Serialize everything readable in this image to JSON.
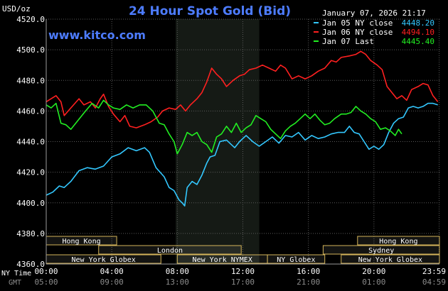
{
  "chart_data": {
    "type": "line",
    "title": "24 Hour Spot Gold (Bid)",
    "source": "www.kitco.com",
    "date": "January 07, 2026 21:17",
    "ylabel": "USD/oz",
    "ylim": [
      4360,
      4520
    ],
    "yticks": [
      "4360.0",
      "4380.0",
      "4400.0",
      "4420.0",
      "4440.0",
      "4460.0",
      "4480.0",
      "4500.0",
      "4520.0"
    ],
    "xlim": [
      0,
      24
    ],
    "x_ticks": [
      {
        "x": 0,
        "ny": "00:00",
        "gmt": "05:00"
      },
      {
        "x": 4,
        "ny": "04:00",
        "gmt": "09:00"
      },
      {
        "x": 8,
        "ny": "08:00",
        "gmt": "13:00"
      },
      {
        "x": 12,
        "ny": "12:00",
        "gmt": "17:00"
      },
      {
        "x": 16,
        "ny": "16:00",
        "gmt": "21:00"
      },
      {
        "x": 20,
        "ny": "20:00",
        "gmt": "01:00"
      },
      {
        "x": 23.98,
        "ny": "23:59",
        "gmt": "04:59"
      }
    ],
    "x_axis_labels": {
      "ny": "NY Time",
      "gmt": "GMT"
    },
    "grid": true,
    "legend_position": "top-right",
    "colors": {
      "background": "#000000",
      "plot_bg": "#000000",
      "shade": "#151a15",
      "grid": "#5a5a5a",
      "title": "#4d7cff",
      "session_fill": "#fffbe0",
      "session_border": "#d4b45a"
    },
    "shaded_hours": [
      7.9,
      13.0
    ],
    "sessions": [
      {
        "name": "Hong Kong",
        "row": 0,
        "start": 0.0,
        "end": 4.3
      },
      {
        "name": "Hong Kong",
        "row": 0,
        "start": 19.0,
        "end": 24.0
      },
      {
        "name": "London",
        "row": 1,
        "start": 3.2,
        "end": 11.9
      },
      {
        "name": "Sydney",
        "row": 1,
        "start": 16.9,
        "end": 24.0
      },
      {
        "name": "New York Globex",
        "row": 2,
        "start": 0.0,
        "end": 7.0
      },
      {
        "name": "New York NYMEX",
        "row": 2,
        "start": 8.0,
        "end": 13.5
      },
      {
        "name": "NY Globex",
        "row": 2,
        "start": 13.5,
        "end": 17.0
      },
      {
        "name": "New York Globex",
        "row": 2,
        "start": 18.0,
        "end": 24.0
      }
    ],
    "series": [
      {
        "name": "Jan 05 NY close",
        "close": "4448.20",
        "color": "#33c8ff",
        "points": [
          [
            0,
            4405
          ],
          [
            0.4,
            4407
          ],
          [
            0.8,
            4411
          ],
          [
            1.1,
            4410
          ],
          [
            1.5,
            4414
          ],
          [
            2.0,
            4421
          ],
          [
            2.5,
            4423
          ],
          [
            3.0,
            4422
          ],
          [
            3.5,
            4424
          ],
          [
            4.0,
            4430
          ],
          [
            4.5,
            4432
          ],
          [
            5.0,
            4436
          ],
          [
            5.5,
            4434
          ],
          [
            6.0,
            4436
          ],
          [
            6.3,
            4433
          ],
          [
            6.7,
            4423
          ],
          [
            7.2,
            4417
          ],
          [
            7.5,
            4410
          ],
          [
            7.8,
            4408
          ],
          [
            8.1,
            4402
          ],
          [
            8.3,
            4400
          ],
          [
            8.45,
            4398
          ],
          [
            8.6,
            4410
          ],
          [
            8.9,
            4414
          ],
          [
            9.2,
            4412
          ],
          [
            9.5,
            4418
          ],
          [
            9.8,
            4426
          ],
          [
            10.0,
            4430
          ],
          [
            10.3,
            4431
          ],
          [
            10.6,
            4440
          ],
          [
            11.0,
            4441
          ],
          [
            11.3,
            4438
          ],
          [
            11.5,
            4436
          ],
          [
            11.8,
            4440
          ],
          [
            12.2,
            4444
          ],
          [
            12.6,
            4440
          ],
          [
            13.0,
            4437
          ],
          [
            13.4,
            4440
          ],
          [
            13.8,
            4443
          ],
          [
            14.2,
            4439
          ],
          [
            14.6,
            4444
          ],
          [
            15.0,
            4443
          ],
          [
            15.4,
            4446
          ],
          [
            15.8,
            4441
          ],
          [
            16.2,
            4444
          ],
          [
            16.6,
            4442
          ],
          [
            17.0,
            4443
          ],
          [
            17.4,
            4445
          ],
          [
            17.8,
            4446
          ],
          [
            18.2,
            4446
          ],
          [
            18.5,
            4450
          ],
          [
            18.8,
            4446
          ],
          [
            19.1,
            4445
          ],
          [
            19.4,
            4440
          ],
          [
            19.7,
            4435
          ],
          [
            20.0,
            4437
          ],
          [
            20.3,
            4435
          ],
          [
            20.6,
            4438
          ],
          [
            20.9,
            4446
          ],
          [
            21.2,
            4452
          ],
          [
            21.5,
            4455
          ],
          [
            21.8,
            4456
          ],
          [
            22.1,
            4462
          ],
          [
            22.4,
            4463
          ],
          [
            22.7,
            4462
          ],
          [
            23.0,
            4463
          ],
          [
            23.3,
            4465
          ],
          [
            23.6,
            4465
          ],
          [
            23.9,
            4464
          ]
        ]
      },
      {
        "name": "Jan 06 NY close",
        "close": "4494.10",
        "color": "#ff2020",
        "points": [
          [
            0,
            4466
          ],
          [
            0.3,
            4468
          ],
          [
            0.6,
            4470
          ],
          [
            0.9,
            4466
          ],
          [
            1.1,
            4457
          ],
          [
            1.5,
            4462
          ],
          [
            2.0,
            4468
          ],
          [
            2.3,
            4464
          ],
          [
            2.7,
            4466
          ],
          [
            3.0,
            4462
          ],
          [
            3.3,
            4468
          ],
          [
            3.5,
            4471
          ],
          [
            3.8,
            4463
          ],
          [
            4.1,
            4458
          ],
          [
            4.5,
            4453
          ],
          [
            4.8,
            4457
          ],
          [
            5.1,
            4450
          ],
          [
            5.5,
            4449
          ],
          [
            6.0,
            4451
          ],
          [
            6.4,
            4453
          ],
          [
            6.8,
            4456
          ],
          [
            7.1,
            4460
          ],
          [
            7.5,
            4462
          ],
          [
            7.9,
            4461
          ],
          [
            8.2,
            4464
          ],
          [
            8.5,
            4460
          ],
          [
            8.8,
            4464
          ],
          [
            9.2,
            4468
          ],
          [
            9.5,
            4472
          ],
          [
            9.8,
            4479
          ],
          [
            10.1,
            4488
          ],
          [
            10.4,
            4484
          ],
          [
            10.7,
            4481
          ],
          [
            11.0,
            4476
          ],
          [
            11.4,
            4480
          ],
          [
            11.8,
            4483
          ],
          [
            12.1,
            4484
          ],
          [
            12.4,
            4487
          ],
          [
            12.8,
            4488
          ],
          [
            13.2,
            4490
          ],
          [
            13.6,
            4488
          ],
          [
            14.0,
            4486
          ],
          [
            14.3,
            4490
          ],
          [
            14.6,
            4488
          ],
          [
            15.0,
            4481
          ],
          [
            15.4,
            4483
          ],
          [
            15.8,
            4481
          ],
          [
            16.2,
            4483
          ],
          [
            16.6,
            4486
          ],
          [
            17.0,
            4488
          ],
          [
            17.4,
            4493
          ],
          [
            17.7,
            4492
          ],
          [
            18.0,
            4495
          ],
          [
            18.5,
            4496
          ],
          [
            18.9,
            4497
          ],
          [
            19.2,
            4499
          ],
          [
            19.5,
            4497
          ],
          [
            19.8,
            4493
          ],
          [
            20.2,
            4490
          ],
          [
            20.5,
            4487
          ],
          [
            20.8,
            4476
          ],
          [
            21.1,
            4472
          ],
          [
            21.4,
            4468
          ],
          [
            21.7,
            4470
          ],
          [
            22.0,
            4467
          ],
          [
            22.3,
            4474
          ],
          [
            22.7,
            4476
          ],
          [
            23.0,
            4478
          ],
          [
            23.3,
            4477
          ],
          [
            23.6,
            4470
          ],
          [
            23.9,
            4466
          ]
        ]
      },
      {
        "name": "Jan 07 Last",
        "close": "4445.40",
        "color": "#22ee22",
        "points": [
          [
            0,
            4464
          ],
          [
            0.3,
            4462
          ],
          [
            0.6,
            4465
          ],
          [
            0.9,
            4452
          ],
          [
            1.2,
            4451
          ],
          [
            1.5,
            4448
          ],
          [
            1.8,
            4452
          ],
          [
            2.1,
            4456
          ],
          [
            2.4,
            4460
          ],
          [
            2.8,
            4465
          ],
          [
            3.2,
            4462
          ],
          [
            3.5,
            4467
          ],
          [
            3.8,
            4464
          ],
          [
            4.1,
            4462
          ],
          [
            4.5,
            4461
          ],
          [
            4.9,
            4464
          ],
          [
            5.3,
            4462
          ],
          [
            5.7,
            4464
          ],
          [
            6.1,
            4464
          ],
          [
            6.5,
            4460
          ],
          [
            6.9,
            4452
          ],
          [
            7.2,
            4451
          ],
          [
            7.5,
            4445
          ],
          [
            7.8,
            4440
          ],
          [
            8.0,
            4432
          ],
          [
            8.3,
            4438
          ],
          [
            8.6,
            4446
          ],
          [
            8.9,
            4444
          ],
          [
            9.2,
            4446
          ],
          [
            9.5,
            4440
          ],
          [
            9.8,
            4438
          ],
          [
            10.1,
            4433
          ],
          [
            10.4,
            4443
          ],
          [
            10.7,
            4445
          ],
          [
            11.0,
            4450
          ],
          [
            11.3,
            4446
          ],
          [
            11.6,
            4452
          ],
          [
            11.9,
            4446
          ],
          [
            12.2,
            4449
          ],
          [
            12.5,
            4451
          ],
          [
            12.8,
            4457
          ],
          [
            13.1,
            4455
          ],
          [
            13.4,
            4453
          ],
          [
            13.7,
            4448
          ],
          [
            14.0,
            4445
          ],
          [
            14.3,
            4442
          ],
          [
            14.6,
            4447
          ],
          [
            14.9,
            4450
          ],
          [
            15.2,
            4452
          ],
          [
            15.5,
            4455
          ],
          [
            15.8,
            4458
          ],
          [
            16.1,
            4455
          ],
          [
            16.4,
            4458
          ],
          [
            16.7,
            4454
          ],
          [
            17.0,
            4451
          ],
          [
            17.3,
            4452
          ],
          [
            17.6,
            4455
          ],
          [
            18.0,
            4458
          ],
          [
            18.3,
            4458
          ],
          [
            18.6,
            4459
          ],
          [
            18.9,
            4463
          ],
          [
            19.2,
            4460
          ],
          [
            19.5,
            4458
          ],
          [
            19.8,
            4455
          ],
          [
            20.1,
            4453
          ],
          [
            20.4,
            4448
          ],
          [
            20.7,
            4449
          ],
          [
            21.0,
            4447
          ],
          [
            21.3,
            4444
          ],
          [
            21.5,
            4448
          ],
          [
            21.7,
            4445
          ]
        ]
      }
    ]
  }
}
